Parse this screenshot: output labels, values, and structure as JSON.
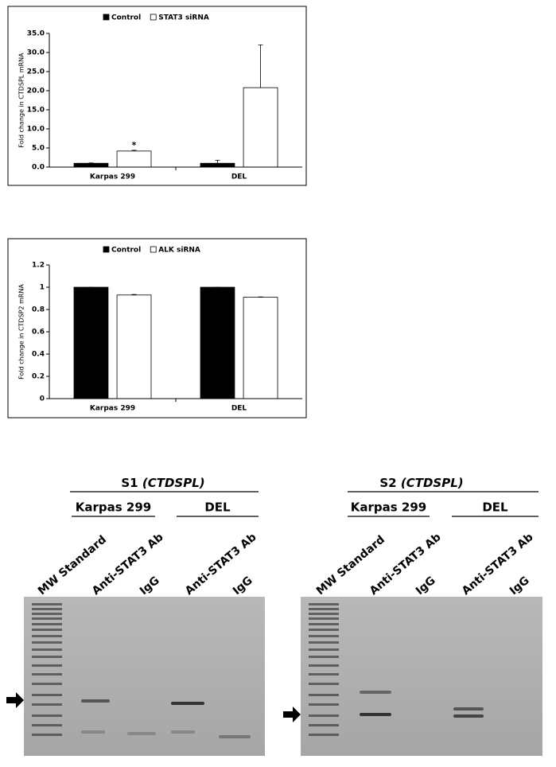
{
  "chart_data": [
    {
      "type": "bar",
      "y_label": "Fold change in CTDSPL mRNA",
      "categories": [
        "Karpas 299",
        "DEL"
      ],
      "series": [
        {
          "name": "Control",
          "color": "#000000",
          "values": [
            1.0,
            1.0
          ],
          "errors": [
            0.1,
            0.8
          ]
        },
        {
          "name": "STAT3 siRNA",
          "color": "#ffffff",
          "values": [
            4.2,
            20.8
          ],
          "errors": [
            0.2,
            11.2
          ]
        }
      ],
      "annotation": "*",
      "ylim": [
        0,
        35
      ],
      "yticks": [
        {
          "value": 0,
          "label": "0.0"
        },
        {
          "value": 5,
          "label": "5.0"
        },
        {
          "value": 10,
          "label": "10.0"
        },
        {
          "value": 15,
          "label": "15.0"
        },
        {
          "value": 20,
          "label": "20.0"
        },
        {
          "value": 25,
          "label": "25.0"
        },
        {
          "value": 30,
          "label": "30.0"
        },
        {
          "value": 35,
          "label": "35.0"
        }
      ]
    },
    {
      "type": "bar",
      "y_label": "Fold change in CTDSP2 mRNA",
      "categories": [
        "Karpas 299",
        "DEL"
      ],
      "series": [
        {
          "name": "Control",
          "color": "#000000",
          "values": [
            1,
            1
          ],
          "errors": [
            0,
            0
          ]
        },
        {
          "name": "ALK siRNA",
          "color": "#ffffff",
          "values": [
            0.93,
            0.91
          ],
          "errors": [
            0.005,
            0.003
          ]
        }
      ],
      "ylim": [
        0,
        1.2
      ],
      "yticks": [
        0,
        0.2,
        0.4,
        0.6,
        0.8,
        1,
        1.2
      ]
    }
  ],
  "gels": [
    {
      "title": "S1",
      "gene": "(CTDSPL)",
      "groups": [
        "Karpas 299",
        "DEL"
      ],
      "lanes": [
        "MW Standard",
        "Anti-STAT3 Ab",
        "IgG",
        "Anti-STAT3 Ab",
        "IgG"
      ]
    },
    {
      "title": "S2",
      "gene": "(CTDSPL)",
      "groups": [
        "Karpas 299",
        "DEL"
      ],
      "lanes": [
        "MW Standard",
        "Anti-STAT3 Ab",
        "IgG",
        "Anti-STAT3 Ab",
        "IgG"
      ]
    }
  ]
}
